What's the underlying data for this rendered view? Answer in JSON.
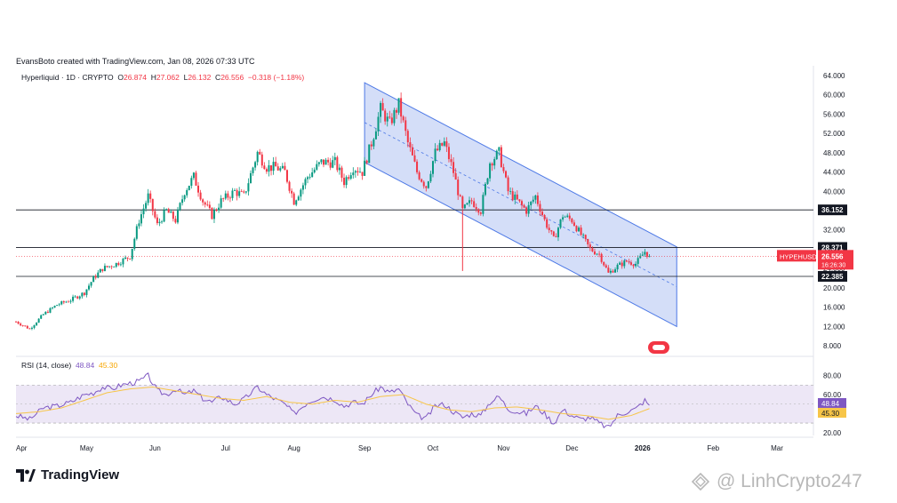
{
  "header": {
    "credit": "EvansBoto created with TradingView.com, Jan 08, 2026 07:33 UTC",
    "symbol": "Hyperliquid · 1D · CRYPTO",
    "ohlc": {
      "o_label": "O",
      "o": "26.874",
      "h_label": "H",
      "h": "27.062",
      "l_label": "L",
      "l": "26.132",
      "c_label": "C",
      "c": "26.556",
      "change": "−0.318 (−1.18%)"
    }
  },
  "rsi_header": {
    "label": "RSI (14, close)",
    "rsi": "48.84",
    "ma": "45.30"
  },
  "footer": {
    "brand": "TradingView",
    "watermark": "@ LinhCrypto247"
  },
  "colors": {
    "up": "#089981",
    "down": "#f23645",
    "channel_fill": "#c6d3f5",
    "channel_line": "#4d79e6",
    "rsi_line": "#7e57c2",
    "rsi_ma": "#f7c548",
    "rsi_band": "#ede7f6",
    "hline": "#131722"
  },
  "chart_data": [
    {
      "type": "candlestick",
      "y_axis": {
        "range": [
          6,
          66
        ],
        "ticks": [
          "64.000",
          "60.000",
          "56.000",
          "52.000",
          "48.000",
          "44.000",
          "40.000",
          "36.000",
          "32.000",
          "28.000",
          "24.000",
          "20.000",
          "16.000",
          "12.000",
          "8.000"
        ],
        "tick_values": [
          64,
          60,
          56,
          52,
          48,
          44,
          40,
          36,
          32,
          28,
          24,
          20,
          16,
          12,
          8
        ]
      },
      "x_axis": {
        "labels": [
          "Apr",
          "May",
          "Jun",
          "Jul",
          "Aug",
          "Sep",
          "Oct",
          "Nov",
          "Dec",
          "2026",
          "Feb",
          "Mar"
        ],
        "label_index": [
          0,
          31,
          61,
          92,
          122,
          153,
          183,
          214,
          244,
          275,
          306,
          334
        ],
        "total_days": 350
      },
      "horizontal_levels": [
        {
          "value": 36.152,
          "label": "36.152"
        },
        {
          "value": 28.371,
          "label": "28.371"
        },
        {
          "value": 22.385,
          "label": "22.385"
        }
      ],
      "price_label": {
        "symbol": "HYPEHUSD",
        "value": 26.556,
        "value_label": "26.556",
        "countdown": "16:26:30"
      },
      "channel": {
        "start_day": 153,
        "end_day": 290,
        "upper_start": 62.5,
        "upper_end": 28.5,
        "lower_start": 46.0,
        "lower_end": 12.0
      },
      "close_path": [
        [
          0,
          13.0
        ],
        [
          6,
          11.5
        ],
        [
          12,
          14.5
        ],
        [
          18,
          16.5
        ],
        [
          24,
          17.5
        ],
        [
          30,
          19.0
        ],
        [
          34,
          22.0
        ],
        [
          38,
          24.0
        ],
        [
          44,
          25.0
        ],
        [
          50,
          26.5
        ],
        [
          54,
          34.0
        ],
        [
          58,
          39.0
        ],
        [
          62,
          33.0
        ],
        [
          66,
          36.0
        ],
        [
          70,
          34.0
        ],
        [
          74,
          40.0
        ],
        [
          78,
          43.0
        ],
        [
          82,
          38.0
        ],
        [
          86,
          35.0
        ],
        [
          90,
          38.0
        ],
        [
          96,
          40.0
        ],
        [
          100,
          39.0
        ],
        [
          106,
          48.0
        ],
        [
          110,
          45.0
        ],
        [
          114,
          45.0
        ],
        [
          118,
          44.0
        ],
        [
          122,
          38.0
        ],
        [
          128,
          43.0
        ],
        [
          134,
          46.0
        ],
        [
          140,
          46.0
        ],
        [
          144,
          42.0
        ],
        [
          148,
          45.0
        ],
        [
          152,
          44.0
        ],
        [
          156,
          50.0
        ],
        [
          160,
          57.0
        ],
        [
          164,
          54.0
        ],
        [
          168,
          58.0
        ],
        [
          172,
          50.0
        ],
        [
          176,
          44.0
        ],
        [
          180,
          41.0
        ],
        [
          184,
          48.0
        ],
        [
          188,
          50.0
        ],
        [
          192,
          44.0
        ],
        [
          196,
          36.0
        ],
        [
          200,
          38.0
        ],
        [
          204,
          36.0
        ],
        [
          208,
          46.0
        ],
        [
          212,
          48.0
        ],
        [
          216,
          40.0
        ],
        [
          220,
          38.0
        ],
        [
          224,
          36.0
        ],
        [
          228,
          39.0
        ],
        [
          232,
          34.0
        ],
        [
          236,
          30.0
        ],
        [
          240,
          35.0
        ],
        [
          244,
          34.0
        ],
        [
          248,
          31.0
        ],
        [
          252,
          28.0
        ],
        [
          256,
          27.0
        ],
        [
          260,
          23.0
        ],
        [
          264,
          24.5
        ],
        [
          268,
          25.5
        ],
        [
          272,
          25.0
        ],
        [
          276,
          27.5
        ],
        [
          278,
          26.556
        ]
      ]
    },
    {
      "type": "line",
      "name": "RSI (14, close)",
      "y_axis": {
        "range": [
          17,
          90
        ],
        "ticks": [
          "80.00",
          "60.00",
          "20.00"
        ],
        "tick_values": [
          80,
          60,
          20
        ]
      },
      "bands": {
        "upper": 70,
        "lower": 30
      },
      "current_labels": [
        {
          "value": 48.84,
          "label": "48.84"
        },
        {
          "value": 45.3,
          "label": "45.30"
        }
      ],
      "rsi": [
        [
          0,
          38
        ],
        [
          6,
          34
        ],
        [
          12,
          46
        ],
        [
          18,
          48
        ],
        [
          24,
          52
        ],
        [
          30,
          60
        ],
        [
          34,
          62
        ],
        [
          38,
          68
        ],
        [
          42,
          66
        ],
        [
          46,
          70
        ],
        [
          50,
          72
        ],
        [
          54,
          74
        ],
        [
          58,
          80
        ],
        [
          62,
          64
        ],
        [
          66,
          60
        ],
        [
          70,
          66
        ],
        [
          74,
          60
        ],
        [
          78,
          64
        ],
        [
          82,
          56
        ],
        [
          86,
          52
        ],
        [
          90,
          58
        ],
        [
          96,
          50
        ],
        [
          100,
          55
        ],
        [
          106,
          68
        ],
        [
          110,
          60
        ],
        [
          114,
          55
        ],
        [
          118,
          50
        ],
        [
          122,
          40
        ],
        [
          128,
          52
        ],
        [
          134,
          58
        ],
        [
          140,
          55
        ],
        [
          144,
          48
        ],
        [
          148,
          52
        ],
        [
          152,
          50
        ],
        [
          156,
          60
        ],
        [
          160,
          68
        ],
        [
          164,
          62
        ],
        [
          168,
          66
        ],
        [
          172,
          50
        ],
        [
          176,
          38
        ],
        [
          180,
          35
        ],
        [
          184,
          48
        ],
        [
          188,
          50
        ],
        [
          192,
          42
        ],
        [
          196,
          36
        ],
        [
          200,
          40
        ],
        [
          204,
          38
        ],
        [
          208,
          52
        ],
        [
          212,
          58
        ],
        [
          216,
          45
        ],
        [
          220,
          42
        ],
        [
          224,
          40
        ],
        [
          228,
          48
        ],
        [
          232,
          40
        ],
        [
          236,
          30
        ],
        [
          240,
          44
        ],
        [
          244,
          38
        ],
        [
          248,
          34
        ],
        [
          252,
          36
        ],
        [
          256,
          30
        ],
        [
          260,
          25
        ],
        [
          264,
          38
        ],
        [
          268,
          42
        ],
        [
          272,
          45
        ],
        [
          276,
          54
        ],
        [
          278,
          48.84
        ]
      ],
      "rsi_ma": [
        [
          0,
          40
        ],
        [
          10,
          42
        ],
        [
          20,
          46
        ],
        [
          30,
          54
        ],
        [
          40,
          62
        ],
        [
          50,
          66
        ],
        [
          60,
          68
        ],
        [
          70,
          64
        ],
        [
          80,
          60
        ],
        [
          90,
          56
        ],
        [
          100,
          54
        ],
        [
          110,
          58
        ],
        [
          120,
          52
        ],
        [
          130,
          50
        ],
        [
          140,
          54
        ],
        [
          150,
          52
        ],
        [
          160,
          58
        ],
        [
          170,
          60
        ],
        [
          180,
          50
        ],
        [
          190,
          44
        ],
        [
          200,
          42
        ],
        [
          210,
          46
        ],
        [
          220,
          47
        ],
        [
          230,
          44
        ],
        [
          240,
          40
        ],
        [
          250,
          38
        ],
        [
          260,
          34
        ],
        [
          270,
          38
        ],
        [
          278,
          45.3
        ]
      ]
    }
  ]
}
